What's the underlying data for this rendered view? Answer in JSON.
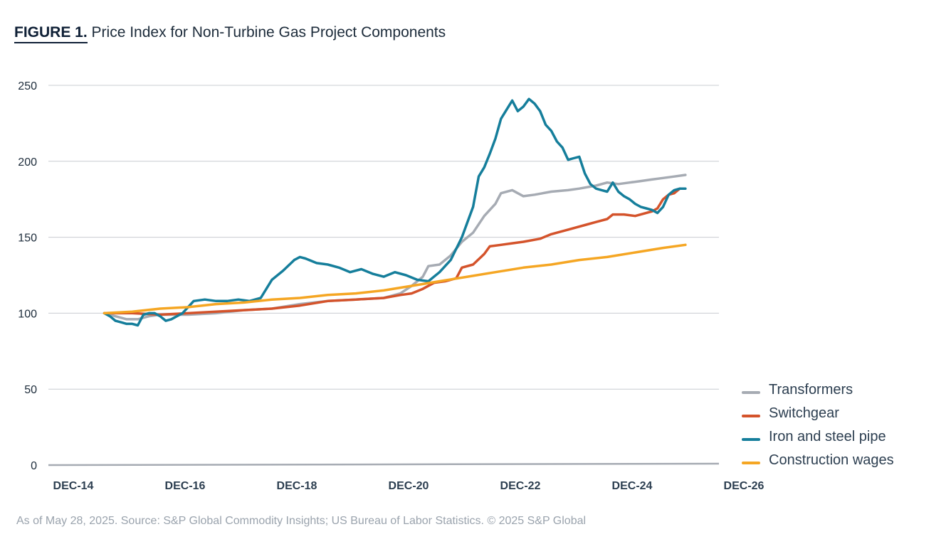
{
  "figure": {
    "label": "FIGURE 1.",
    "title": "Price Index for Non-Turbine Gas Project Components"
  },
  "source": "As of May 28, 2025. Source: S&P Global Commodity Insights; US Bureau of Labor Statistics. © 2025 S&P Global",
  "chart_data": {
    "type": "line",
    "title": "Price Index for Non-Turbine Gas Project Components",
    "xlabel": "",
    "ylabel": "",
    "x_unit": "years since Dec 2014",
    "xlim": [
      0,
      12
    ],
    "ylim": [
      0,
      250
    ],
    "y_ticks": [
      0,
      50,
      100,
      150,
      200,
      250
    ],
    "x_ticks": [
      {
        "x": 0,
        "label": "DEC-14"
      },
      {
        "x": 2,
        "label": "DEC-16"
      },
      {
        "x": 4,
        "label": "DEC-18"
      },
      {
        "x": 6,
        "label": "DEC-20"
      },
      {
        "x": 8,
        "label": "DEC-22"
      },
      {
        "x": 10,
        "label": "DEC-24"
      },
      {
        "x": 12,
        "label": "DEC-26"
      }
    ],
    "grid": true,
    "legend_position": "right",
    "series": [
      {
        "name": "Transformers",
        "color": "#a6abb3",
        "points": [
          [
            1.0,
            100
          ],
          [
            1.2,
            98
          ],
          [
            1.4,
            96
          ],
          [
            1.6,
            96
          ],
          [
            1.8,
            98
          ],
          [
            2.0,
            99
          ],
          [
            2.5,
            99
          ],
          [
            3.0,
            100
          ],
          [
            3.5,
            102
          ],
          [
            4.0,
            103
          ],
          [
            4.5,
            106
          ],
          [
            5.0,
            108
          ],
          [
            5.5,
            109
          ],
          [
            6.0,
            110
          ],
          [
            6.3,
            113
          ],
          [
            6.5,
            118
          ],
          [
            6.7,
            124
          ],
          [
            6.8,
            131
          ],
          [
            7.0,
            132
          ],
          [
            7.2,
            138
          ],
          [
            7.4,
            147
          ],
          [
            7.6,
            153
          ],
          [
            7.8,
            164
          ],
          [
            8.0,
            172
          ],
          [
            8.1,
            179
          ],
          [
            8.3,
            181
          ],
          [
            8.5,
            177
          ],
          [
            8.7,
            178
          ],
          [
            9.0,
            180
          ],
          [
            9.3,
            181
          ],
          [
            9.5,
            182
          ],
          [
            9.8,
            184
          ],
          [
            10.0,
            186
          ],
          [
            10.2,
            185
          ],
          [
            10.4,
            186
          ],
          [
            10.6,
            187
          ],
          [
            10.8,
            188
          ],
          [
            11.0,
            189
          ],
          [
            11.2,
            190
          ],
          [
            11.4,
            191
          ]
        ]
      },
      {
        "name": "Switchgear",
        "color": "#d4532b",
        "points": [
          [
            1.0,
            100
          ],
          [
            1.5,
            100
          ],
          [
            2.0,
            99
          ],
          [
            2.5,
            100
          ],
          [
            3.0,
            101
          ],
          [
            3.5,
            102
          ],
          [
            4.0,
            103
          ],
          [
            4.5,
            105
          ],
          [
            5.0,
            108
          ],
          [
            5.5,
            109
          ],
          [
            6.0,
            110
          ],
          [
            6.3,
            112
          ],
          [
            6.5,
            113
          ],
          [
            6.7,
            116
          ],
          [
            6.9,
            120
          ],
          [
            7.1,
            121
          ],
          [
            7.3,
            123
          ],
          [
            7.4,
            130
          ],
          [
            7.6,
            132
          ],
          [
            7.8,
            139
          ],
          [
            7.9,
            144
          ],
          [
            8.1,
            145
          ],
          [
            8.3,
            146
          ],
          [
            8.5,
            147
          ],
          [
            8.8,
            149
          ],
          [
            9.0,
            152
          ],
          [
            9.3,
            155
          ],
          [
            9.6,
            158
          ],
          [
            9.8,
            160
          ],
          [
            10.0,
            162
          ],
          [
            10.1,
            165
          ],
          [
            10.3,
            165
          ],
          [
            10.5,
            164
          ],
          [
            10.7,
            166
          ],
          [
            10.8,
            167
          ],
          [
            10.9,
            169
          ],
          [
            11.0,
            175
          ],
          [
            11.1,
            178
          ],
          [
            11.2,
            179
          ],
          [
            11.3,
            182
          ]
        ]
      },
      {
        "name": "Iron and steel pipe",
        "color": "#157e9b",
        "points": [
          [
            1.0,
            100
          ],
          [
            1.1,
            98
          ],
          [
            1.2,
            95
          ],
          [
            1.3,
            94
          ],
          [
            1.4,
            93
          ],
          [
            1.5,
            93
          ],
          [
            1.6,
            92
          ],
          [
            1.7,
            99
          ],
          [
            1.8,
            100
          ],
          [
            1.9,
            100
          ],
          [
            2.0,
            98
          ],
          [
            2.1,
            95
          ],
          [
            2.2,
            96
          ],
          [
            2.4,
            100
          ],
          [
            2.6,
            108
          ],
          [
            2.8,
            109
          ],
          [
            3.0,
            108
          ],
          [
            3.2,
            108
          ],
          [
            3.4,
            109
          ],
          [
            3.6,
            108
          ],
          [
            3.8,
            110
          ],
          [
            4.0,
            122
          ],
          [
            4.2,
            128
          ],
          [
            4.4,
            135
          ],
          [
            4.5,
            137
          ],
          [
            4.6,
            136
          ],
          [
            4.8,
            133
          ],
          [
            5.0,
            132
          ],
          [
            5.2,
            130
          ],
          [
            5.4,
            127
          ],
          [
            5.6,
            129
          ],
          [
            5.8,
            126
          ],
          [
            6.0,
            124
          ],
          [
            6.2,
            127
          ],
          [
            6.4,
            125
          ],
          [
            6.6,
            122
          ],
          [
            6.8,
            121
          ],
          [
            7.0,
            127
          ],
          [
            7.2,
            135
          ],
          [
            7.4,
            150
          ],
          [
            7.6,
            170
          ],
          [
            7.7,
            190
          ],
          [
            7.8,
            196
          ],
          [
            7.9,
            205
          ],
          [
            8.0,
            215
          ],
          [
            8.1,
            228
          ],
          [
            8.2,
            234
          ],
          [
            8.3,
            240
          ],
          [
            8.4,
            233
          ],
          [
            8.5,
            236
          ],
          [
            8.6,
            241
          ],
          [
            8.7,
            238
          ],
          [
            8.8,
            233
          ],
          [
            8.9,
            224
          ],
          [
            9.0,
            220
          ],
          [
            9.1,
            213
          ],
          [
            9.2,
            209
          ],
          [
            9.3,
            201
          ],
          [
            9.4,
            202
          ],
          [
            9.5,
            203
          ],
          [
            9.6,
            192
          ],
          [
            9.7,
            185
          ],
          [
            9.8,
            182
          ],
          [
            9.9,
            181
          ],
          [
            10.0,
            180
          ],
          [
            10.1,
            186
          ],
          [
            10.2,
            180
          ],
          [
            10.3,
            177
          ],
          [
            10.4,
            175
          ],
          [
            10.5,
            172
          ],
          [
            10.6,
            170
          ],
          [
            10.7,
            169
          ],
          [
            10.8,
            168
          ],
          [
            10.9,
            166
          ],
          [
            11.0,
            170
          ],
          [
            11.1,
            178
          ],
          [
            11.2,
            181
          ],
          [
            11.3,
            182
          ],
          [
            11.4,
            182
          ]
        ]
      },
      {
        "name": "Construction wages",
        "color": "#f5a623",
        "points": [
          [
            1.0,
            100
          ],
          [
            1.5,
            101
          ],
          [
            2.0,
            103
          ],
          [
            2.5,
            104
          ],
          [
            3.0,
            106
          ],
          [
            3.5,
            107
          ],
          [
            4.0,
            109
          ],
          [
            4.5,
            110
          ],
          [
            5.0,
            112
          ],
          [
            5.5,
            113
          ],
          [
            6.0,
            115
          ],
          [
            6.5,
            118
          ],
          [
            7.0,
            121
          ],
          [
            7.5,
            124
          ],
          [
            8.0,
            127
          ],
          [
            8.5,
            130
          ],
          [
            9.0,
            132
          ],
          [
            9.5,
            135
          ],
          [
            10.0,
            137
          ],
          [
            10.5,
            140
          ],
          [
            11.0,
            143
          ],
          [
            11.4,
            145
          ]
        ]
      }
    ]
  }
}
